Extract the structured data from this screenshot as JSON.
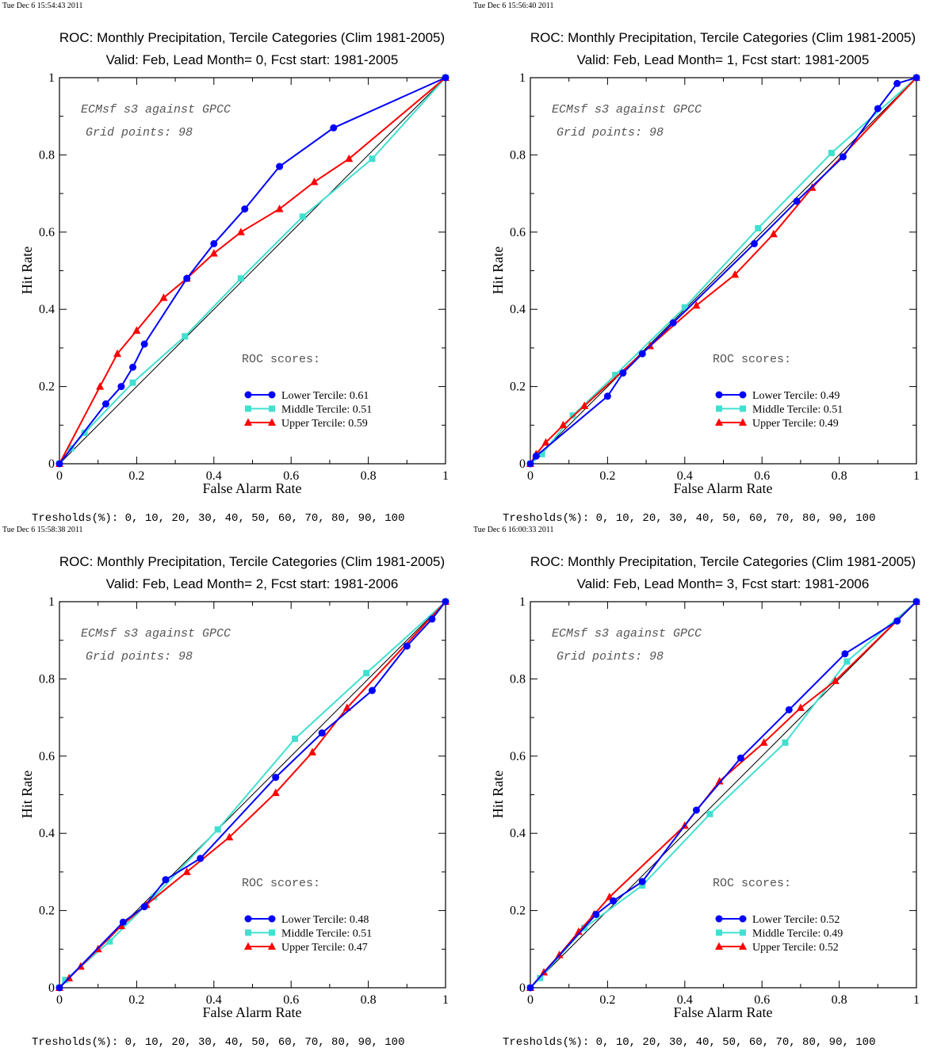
{
  "chart_data": [
    {
      "type": "line",
      "timestamp": "Tue Dec  6 15:54:43 2011",
      "title": "ROC: Monthly Precipitation, Tercile Categories (Clim 1981-2005)",
      "subtitle": "Valid: Feb, Lead Month= 0, Fcst start: 1981-2005",
      "xlabel": "False Alarm Rate",
      "ylabel": "Hit Rate",
      "xlim": [
        0,
        1
      ],
      "ylim": [
        0,
        1
      ],
      "xticks": [
        "0",
        "0.2",
        "0.4",
        "0.6",
        "0.8",
        "1"
      ],
      "yticks": [
        "0",
        "0.2",
        "0.4",
        "0.6",
        "0.8",
        "1"
      ],
      "annotation_1": "ECMsf s3 against GPCC",
      "annotation_2": "Grid points:   98",
      "scores_heading": "ROC scores:",
      "thresholds": "Tresholds(%): 0, 10, 20, 30, 40, 50, 60, 70, 80, 90, 100",
      "diagonal": true,
      "series": [
        {
          "name": "Lower Tercile: 0.61",
          "color": "#0000ff",
          "marker": "circle",
          "x": [
            0,
            0.12,
            0.16,
            0.19,
            0.22,
            0.33,
            0.4,
            0.48,
            0.57,
            0.71,
            1
          ],
          "y": [
            0,
            0.155,
            0.2,
            0.25,
            0.31,
            0.48,
            0.57,
            0.66,
            0.77,
            0.87,
            1
          ]
        },
        {
          "name": "Middle Tercile: 0.51",
          "color": "#40e0d0",
          "marker": "square",
          "x": [
            0,
            0.03,
            0.065,
            0.19,
            0.325,
            0.47,
            0.63,
            0.81,
            1
          ],
          "y": [
            0,
            0.04,
            0.08,
            0.21,
            0.33,
            0.48,
            0.64,
            0.79,
            1
          ]
        },
        {
          "name": "Upper Tercile: 0.59",
          "color": "#ff0000",
          "marker": "triangle",
          "x": [
            0,
            0.105,
            0.15,
            0.2,
            0.27,
            0.33,
            0.4,
            0.47,
            0.57,
            0.66,
            0.75,
            1
          ],
          "y": [
            0,
            0.2,
            0.285,
            0.345,
            0.43,
            0.48,
            0.545,
            0.6,
            0.66,
            0.73,
            0.79,
            1
          ]
        }
      ]
    },
    {
      "type": "line",
      "timestamp": "Tue Dec  6 15:56:40 2011",
      "title": "ROC: Monthly Precipitation, Tercile Categories (Clim 1981-2005)",
      "subtitle": "Valid: Feb, Lead Month= 1, Fcst start: 1981-2005",
      "xlabel": "False Alarm Rate",
      "ylabel": "Hit Rate",
      "xlim": [
        0,
        1
      ],
      "ylim": [
        0,
        1
      ],
      "xticks": [
        "0",
        "0.2",
        "0.4",
        "0.6",
        "0.8",
        "1"
      ],
      "yticks": [
        "0",
        "0.2",
        "0.4",
        "0.6",
        "0.8",
        "1"
      ],
      "annotation_1": "ECMsf s3 against GPCC",
      "annotation_2": "Grid points:   98",
      "scores_heading": "ROC scores:",
      "thresholds": "Tresholds(%): 0, 10, 20, 30, 40, 50, 60, 70, 80, 90, 100",
      "diagonal": true,
      "series": [
        {
          "name": "Lower Tercile: 0.49",
          "color": "#0000ff",
          "marker": "circle",
          "x": [
            0,
            0.015,
            0.2,
            0.24,
            0.29,
            0.37,
            0.58,
            0.69,
            0.81,
            0.9,
            0.95,
            1
          ],
          "y": [
            0,
            0.02,
            0.175,
            0.235,
            0.285,
            0.365,
            0.57,
            0.68,
            0.795,
            0.92,
            0.985,
            1
          ]
        },
        {
          "name": "Middle Tercile: 0.51",
          "color": "#40e0d0",
          "marker": "square",
          "x": [
            0,
            0.03,
            0.11,
            0.22,
            0.4,
            0.59,
            0.78,
            1
          ],
          "y": [
            0,
            0.025,
            0.125,
            0.23,
            0.405,
            0.61,
            0.805,
            1
          ]
        },
        {
          "name": "Upper Tercile: 0.49",
          "color": "#ff0000",
          "marker": "triangle",
          "x": [
            0,
            0.015,
            0.04,
            0.085,
            0.14,
            0.31,
            0.43,
            0.53,
            0.63,
            0.73,
            1
          ],
          "y": [
            0,
            0.025,
            0.055,
            0.1,
            0.15,
            0.305,
            0.41,
            0.49,
            0.595,
            0.715,
            1
          ]
        }
      ]
    },
    {
      "type": "line",
      "timestamp": "Tue Dec  6 15:58:38 2011",
      "title": "ROC: Monthly Precipitation, Tercile Categories (Clim 1981-2005)",
      "subtitle": "Valid: Feb, Lead Month= 2, Fcst start: 1981-2006",
      "xlabel": "False Alarm Rate",
      "ylabel": "Hit Rate",
      "xlim": [
        0,
        1
      ],
      "ylim": [
        0,
        1
      ],
      "xticks": [
        "0",
        "0.2",
        "0.4",
        "0.6",
        "0.8",
        "1"
      ],
      "yticks": [
        "0",
        "0.2",
        "0.4",
        "0.6",
        "0.8",
        "1"
      ],
      "annotation_1": "ECMsf s3 against GPCC",
      "annotation_2": "Grid points:   98",
      "scores_heading": "ROC scores:",
      "thresholds": "Tresholds(%): 0, 10, 20, 30, 40, 50, 60, 70, 80, 90, 100",
      "diagonal": true,
      "series": [
        {
          "name": "Lower Tercile: 0.48",
          "color": "#0000ff",
          "marker": "circle",
          "x": [
            0,
            0.165,
            0.22,
            0.275,
            0.365,
            0.56,
            0.68,
            0.81,
            0.9,
            0.965,
            1
          ],
          "y": [
            0,
            0.17,
            0.21,
            0.28,
            0.335,
            0.545,
            0.66,
            0.77,
            0.885,
            0.955,
            1
          ]
        },
        {
          "name": "Middle Tercile: 0.51",
          "color": "#40e0d0",
          "marker": "square",
          "x": [
            0,
            0.015,
            0.13,
            0.245,
            0.41,
            0.61,
            0.795,
            1
          ],
          "y": [
            0,
            0.02,
            0.12,
            0.235,
            0.41,
            0.645,
            0.815,
            1
          ]
        },
        {
          "name": "Upper Tercile: 0.47",
          "color": "#ff0000",
          "marker": "triangle",
          "x": [
            0,
            0.025,
            0.055,
            0.1,
            0.16,
            0.225,
            0.33,
            0.44,
            0.56,
            0.655,
            0.745,
            1
          ],
          "y": [
            0,
            0.025,
            0.055,
            0.1,
            0.16,
            0.215,
            0.3,
            0.39,
            0.505,
            0.61,
            0.725,
            1
          ]
        }
      ]
    },
    {
      "type": "line",
      "timestamp": "Tue Dec  6 16:00:33 2011",
      "title": "ROC: Monthly Precipitation, Tercile Categories (Clim 1981-2005)",
      "subtitle": "Valid: Feb, Lead Month= 3, Fcst start: 1981-2006",
      "xlabel": "False Alarm Rate",
      "ylabel": "Hit Rate",
      "xlim": [
        0,
        1
      ],
      "ylim": [
        0,
        1
      ],
      "xticks": [
        "0",
        "0.2",
        "0.4",
        "0.6",
        "0.8",
        "1"
      ],
      "yticks": [
        "0",
        "0.2",
        "0.4",
        "0.6",
        "0.8",
        "1"
      ],
      "annotation_1": "ECMsf s3 against GPCC",
      "annotation_2": "Grid points:   98",
      "scores_heading": "ROC scores:",
      "thresholds": "Tresholds(%): 0, 10, 20, 30, 40, 50, 60, 70, 80, 90, 100",
      "diagonal": true,
      "series": [
        {
          "name": "Lower Tercile: 0.52",
          "color": "#0000ff",
          "marker": "circle",
          "x": [
            0,
            0.17,
            0.215,
            0.29,
            0.43,
            0.545,
            0.67,
            0.815,
            0.95,
            1
          ],
          "y": [
            0,
            0.19,
            0.225,
            0.275,
            0.46,
            0.595,
            0.72,
            0.865,
            0.95,
            1
          ]
        },
        {
          "name": "Middle Tercile: 0.49",
          "color": "#40e0d0",
          "marker": "square",
          "x": [
            0,
            0.025,
            0.14,
            0.29,
            0.465,
            0.66,
            0.82,
            1
          ],
          "y": [
            0,
            0.025,
            0.155,
            0.265,
            0.45,
            0.635,
            0.845,
            1
          ]
        },
        {
          "name": "Upper Tercile: 0.52",
          "color": "#ff0000",
          "marker": "triangle",
          "x": [
            0,
            0.035,
            0.075,
            0.125,
            0.165,
            0.205,
            0.4,
            0.49,
            0.605,
            0.7,
            0.79,
            1
          ],
          "y": [
            0,
            0.04,
            0.085,
            0.145,
            0.19,
            0.235,
            0.42,
            0.535,
            0.635,
            0.725,
            0.795,
            1
          ]
        }
      ]
    }
  ]
}
